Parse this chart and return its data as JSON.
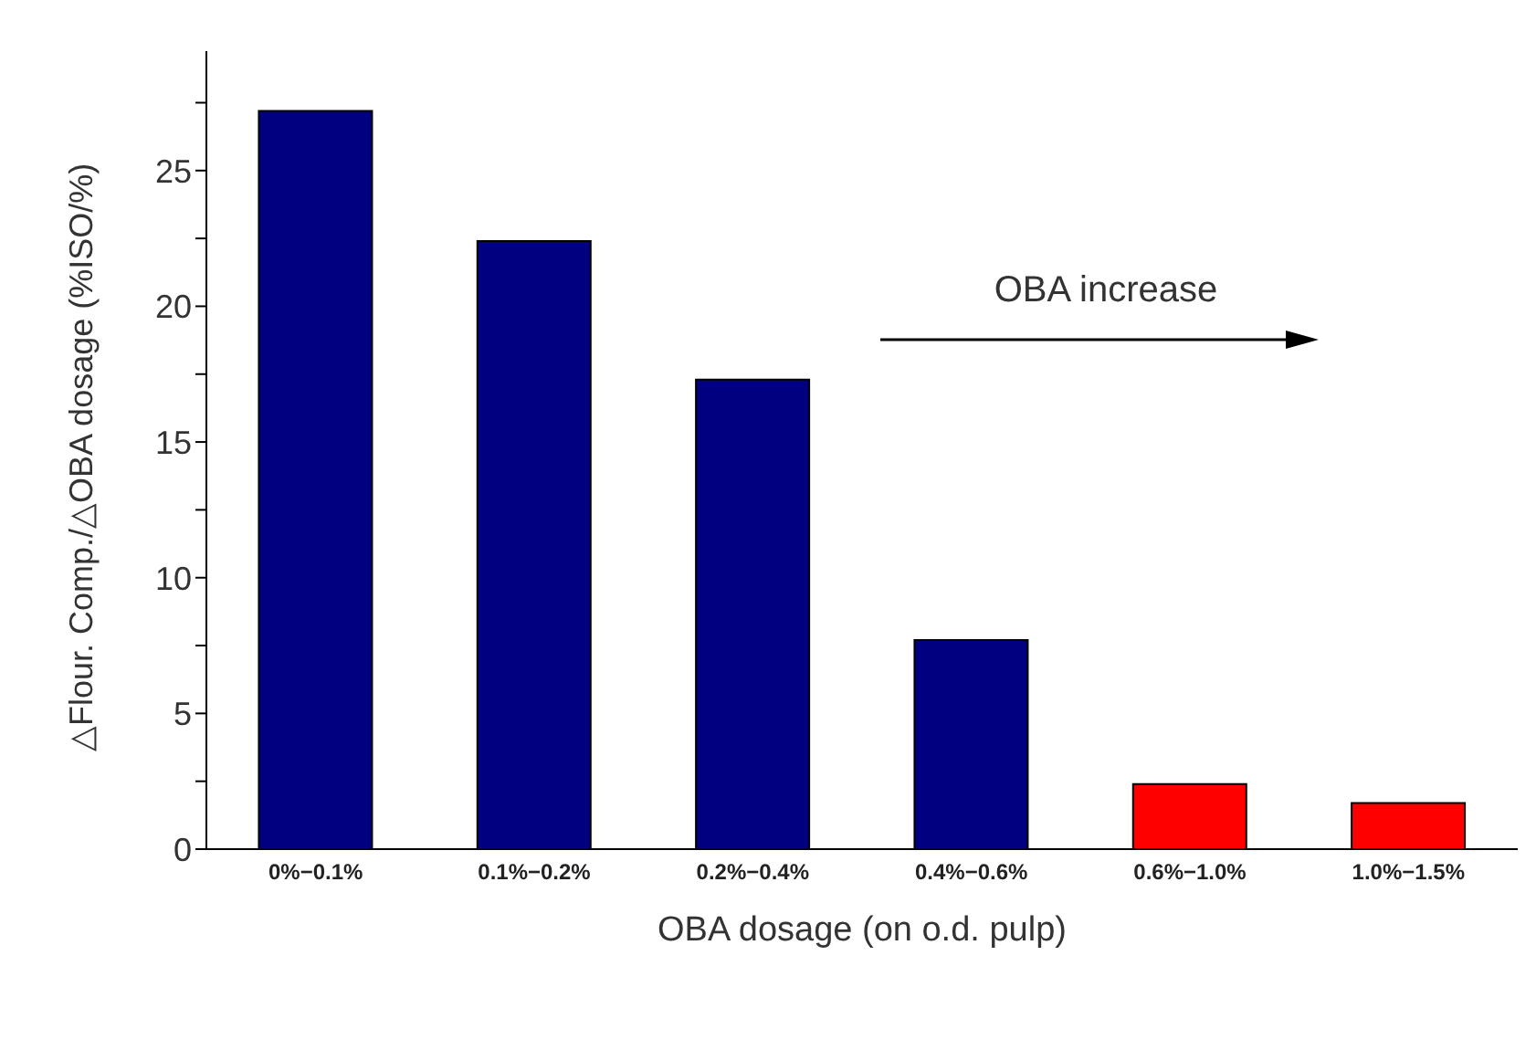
{
  "chart_data": {
    "type": "bar",
    "xlabel": "OBA dosage (on o.d. pulp)",
    "ylabel": "△Flour. Comp./△OBA dosage (%ISO/%)",
    "categories": [
      "0%−0.1%",
      "0.1%−0.2%",
      "0.2%−0.4%",
      "0.4%−0.6%",
      "0.6%−1.0%",
      "1.0%−1.5%"
    ],
    "values": [
      27.2,
      22.4,
      17.3,
      7.7,
      2.4,
      1.7
    ],
    "colors": [
      "#000080",
      "#000080",
      "#000080",
      "#000080",
      "#ff0000",
      "#ff0000"
    ],
    "ylim": [
      0,
      29.4
    ],
    "yticks": [
      0,
      {
        "value": 2.5,
        "label": null
      },
      5,
      {
        "value": 7.5,
        "label": null
      },
      10,
      {
        "value": 12.5,
        "label": null
      },
      15,
      {
        "value": 17.5,
        "label": null
      },
      20,
      {
        "value": 22.5,
        "label": null
      },
      25,
      {
        "value": 27.5,
        "label": null
      }
    ],
    "annotations": [
      "OBA increase"
    ],
    "grid": false,
    "legend": false
  }
}
